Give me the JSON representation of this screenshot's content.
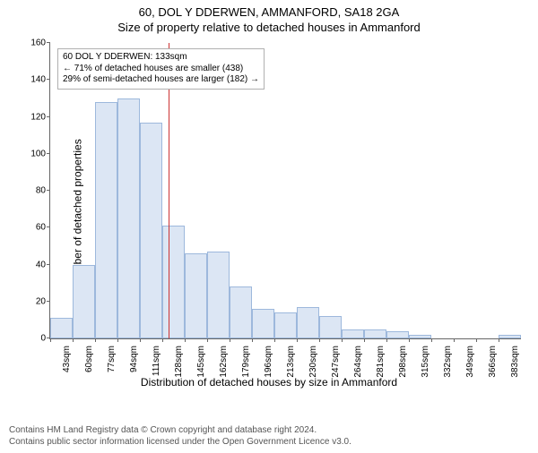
{
  "title_line1": "60, DOL Y DDERWEN, AMMANFORD, SA18 2GA",
  "title_line2": "Size of property relative to detached houses in Ammanford",
  "chart": {
    "type": "histogram",
    "ylabel": "Number of detached properties",
    "xlabel": "Distribution of detached houses by size in Ammanford",
    "ylim": [
      0,
      160
    ],
    "ytick_step": 20,
    "background_color": "#ffffff",
    "bar_fill": "#dce6f4",
    "bar_stroke": "#9db8dc",
    "marker_line_color": "#cc3333",
    "marker_value": 133,
    "categories": [
      "43sqm",
      "60sqm",
      "77sqm",
      "94sqm",
      "111sqm",
      "128sqm",
      "145sqm",
      "162sqm",
      "179sqm",
      "196sqm",
      "213sqm",
      "230sqm",
      "247sqm",
      "264sqm",
      "281sqm",
      "298sqm",
      "315sqm",
      "332sqm",
      "349sqm",
      "366sqm",
      "383sqm"
    ],
    "values": [
      11,
      40,
      128,
      130,
      117,
      61,
      46,
      47,
      28,
      16,
      14,
      17,
      12,
      5,
      5,
      4,
      2,
      0,
      0,
      0,
      2
    ],
    "annot": {
      "line1": "60 DOL Y DDERWEN: 133sqm",
      "line2": "← 71% of detached houses are smaller (438)",
      "line3": "29% of semi-detached houses are larger (182) →"
    },
    "title_fontsize": 13,
    "label_fontsize": 12,
    "tick_fontsize": 10,
    "xtick_rotation": 90
  },
  "attribution": {
    "line1": "Contains HM Land Registry data © Crown copyright and database right 2024.",
    "line2": "Contains public sector information licensed under the Open Government Licence v3.0."
  }
}
